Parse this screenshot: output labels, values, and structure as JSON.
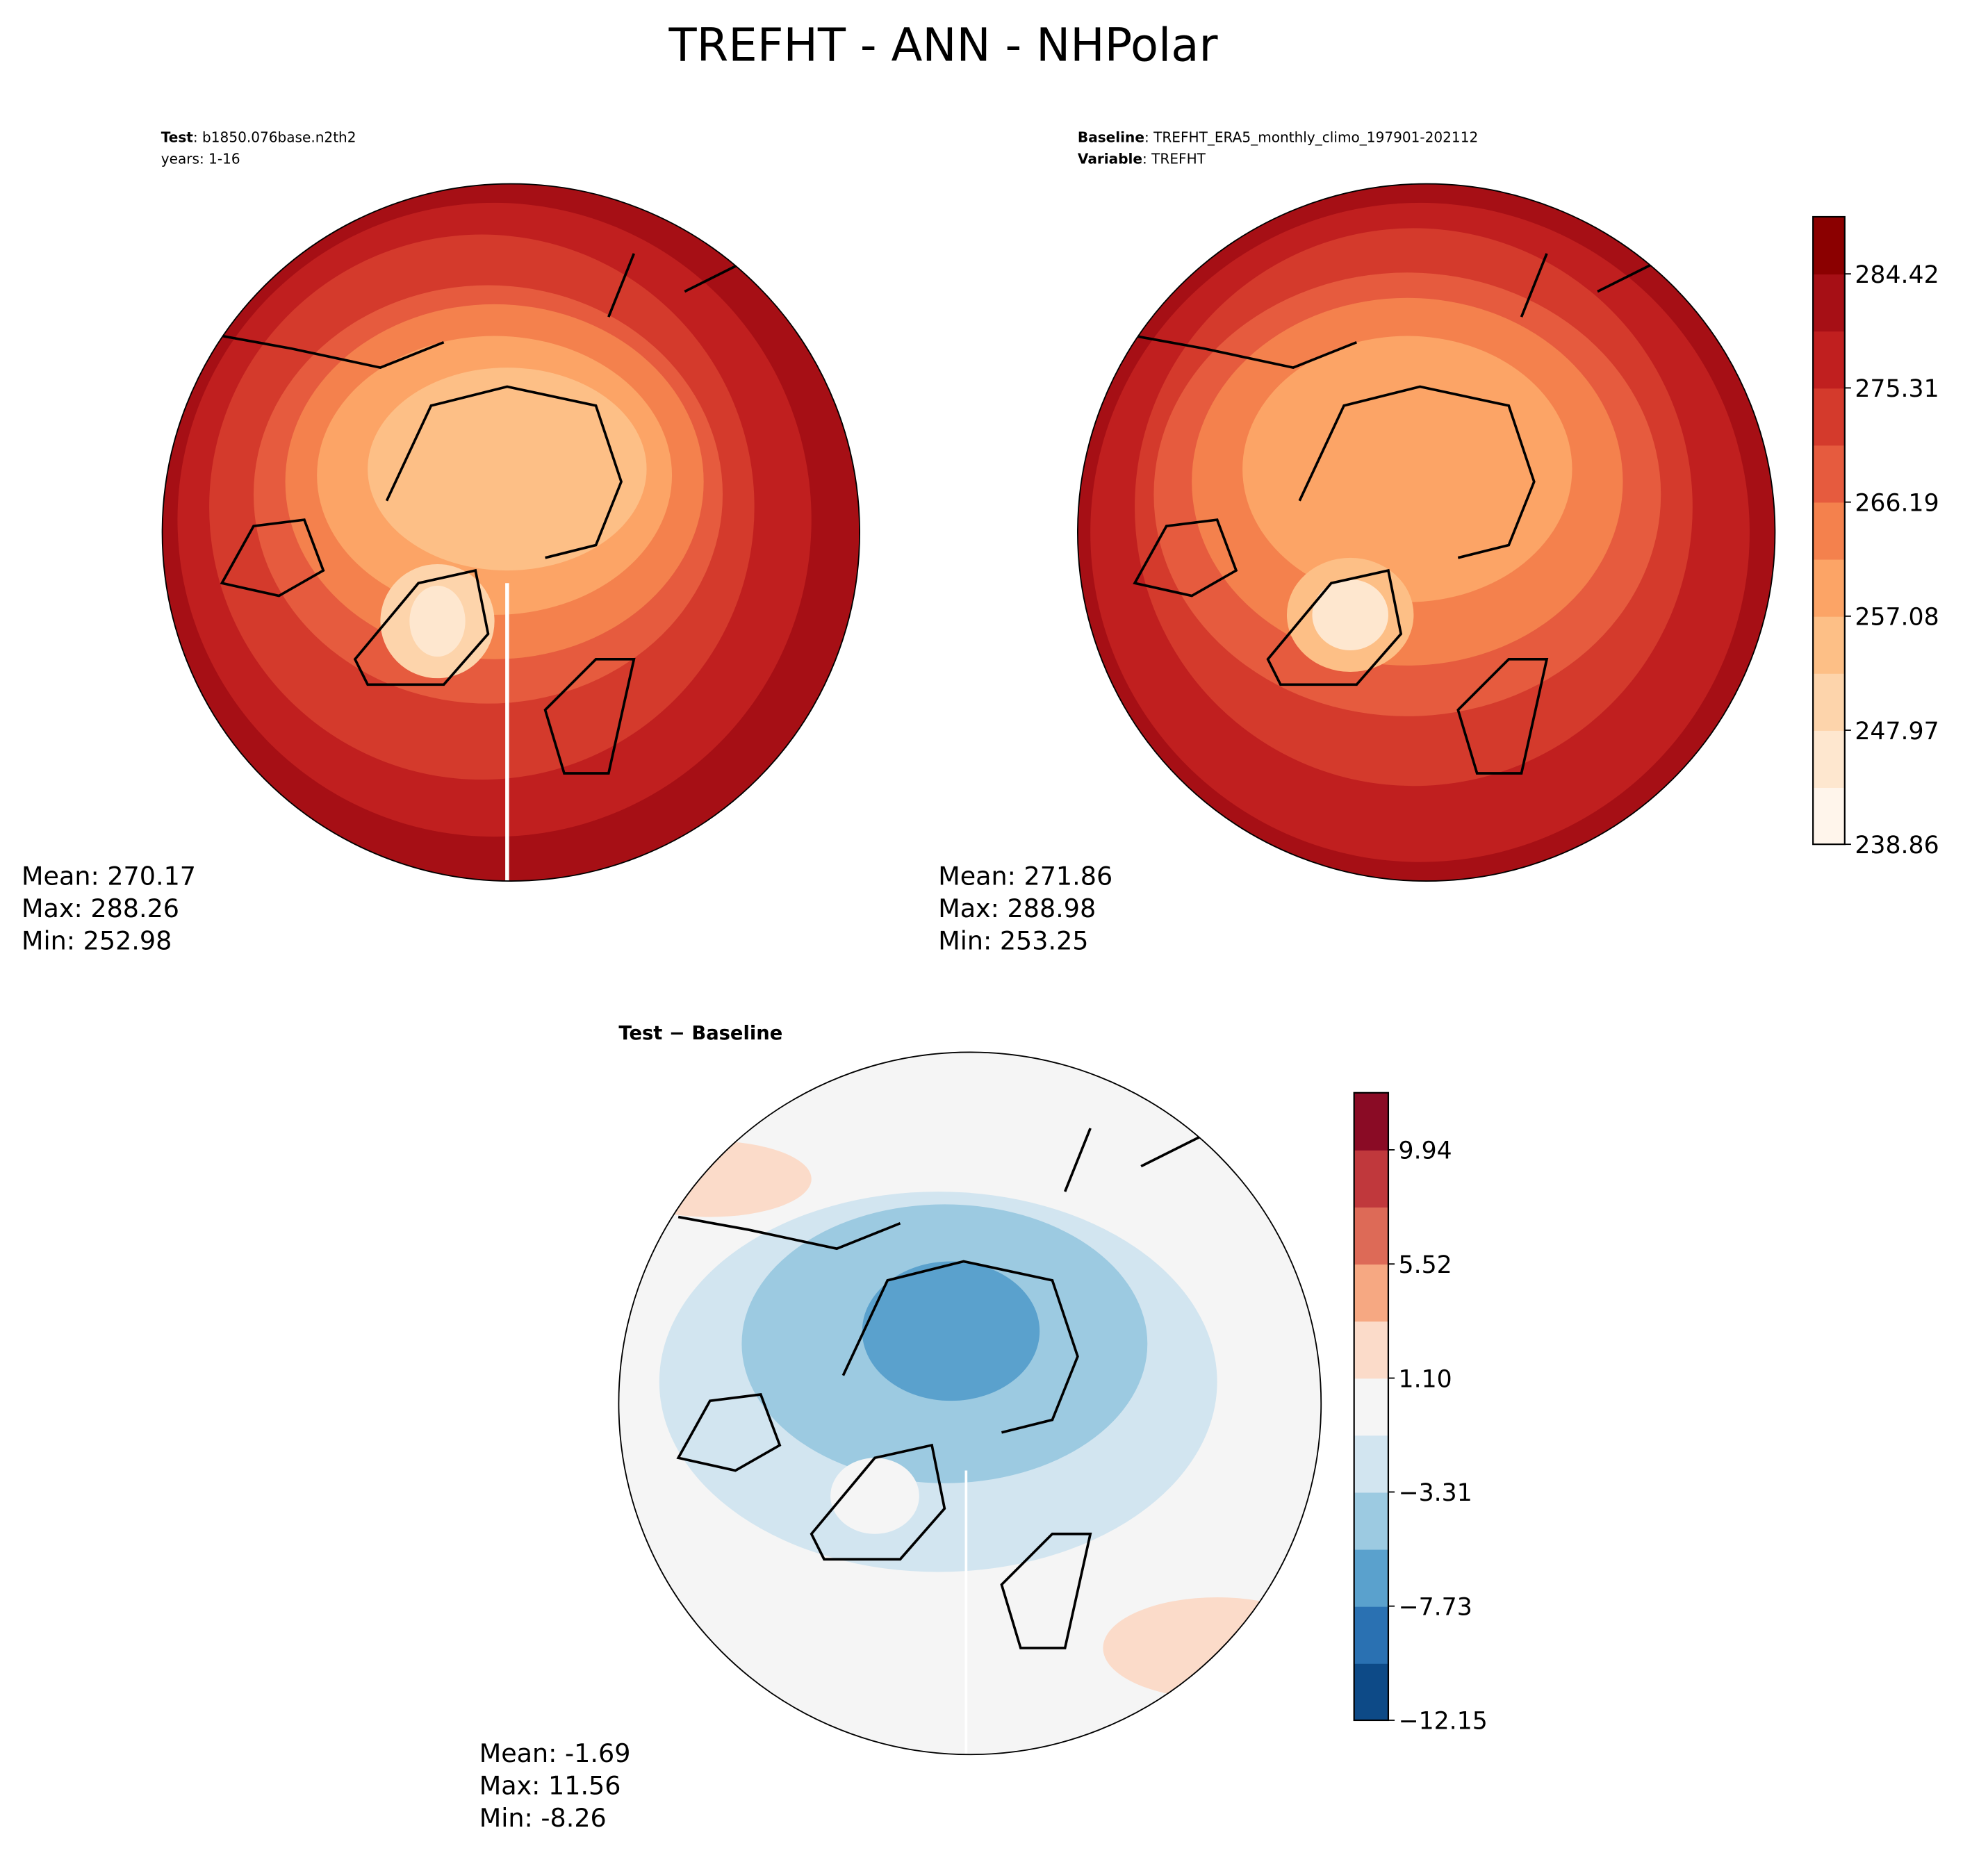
{
  "title": "TREFHT - ANN - NHPolar",
  "panels": [
    {
      "header": [
        {
          "label": "Test",
          "text": ": b1850.076base.n2th2"
        },
        {
          "label": "",
          "text": "years: 1-16"
        }
      ],
      "stats": [
        "Mean: 270.17",
        "Max: 288.26",
        "Min: 252.98"
      ]
    },
    {
      "header": [
        {
          "label": "Baseline",
          "text": ": TREFHT_ERA5_monthly_climo_197901-202112"
        },
        {
          "label": "Variable",
          "text": ": TREFHT"
        }
      ],
      "stats": [
        "Mean: 271.86",
        "Max: 288.98",
        "Min: 253.25"
      ]
    },
    {
      "header": [
        {
          "label": "Test − Baseline",
          "text": ""
        }
      ],
      "stats": [
        "Mean: -1.69",
        "Max: 11.56",
        "Min: -8.26"
      ]
    }
  ],
  "colorbars": [
    {
      "ylim": [
        238.86,
        288.98
      ],
      "yticks": [
        238.86,
        247.97,
        257.08,
        266.19,
        275.31,
        284.42
      ],
      "colors": [
        "#fff5eb",
        "#fee7cf",
        "#fdd4ab",
        "#fdbf86",
        "#fca466",
        "#f4814d",
        "#e65b3e",
        "#d43a2c",
        "#c01f1f",
        "#a60f15",
        "#8b0000"
      ]
    },
    {
      "ylim": [
        -12.15,
        12.15
      ],
      "yticks": [
        {
          "value": -12.15,
          "label": "−12.15"
        },
        {
          "value": -7.73,
          "label": "−7.73"
        },
        {
          "value": -3.31,
          "label": "−3.31"
        },
        {
          "value": 1.1,
          "label": "1.10"
        },
        5.52,
        9.94
      ],
      "colors": [
        "#0d4a87",
        "#2a71b2",
        "#5aa1cd",
        "#9ccae1",
        "#d2e5f0",
        "#f5f5f5",
        "#fbdbc9",
        "#f6a882",
        "#dd6a57",
        "#c0383c",
        "#8a0b25"
      ]
    }
  ]
}
